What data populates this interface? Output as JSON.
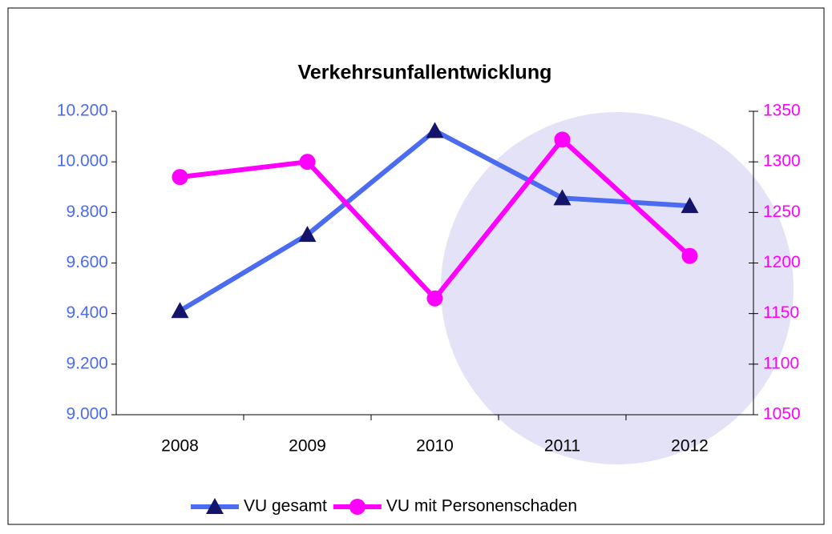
{
  "chart_data": {
    "type": "line",
    "title": "Verkehrsunfallentwicklung",
    "categories": [
      "2008",
      "2009",
      "2010",
      "2011",
      "2012"
    ],
    "series": [
      {
        "name": "VU gesamt",
        "color": "#4b6bf0",
        "marker_color": "#14146a",
        "marker": "triangle",
        "values": [
          9411,
          9712,
          10123,
          9857,
          9826
        ]
      },
      {
        "name": "VU mit Personenschaden",
        "color": "#ff00ff",
        "marker_color": "#ff00ff",
        "marker": "circle",
        "axis": "y2",
        "values": [
          1285,
          1300,
          1165,
          1322,
          1207
        ]
      }
    ],
    "ylim": [
      9000,
      10200
    ],
    "yticks": [
      {
        "value": 9000,
        "label": "9.000"
      },
      {
        "value": 9200,
        "label": "9.200"
      },
      {
        "value": 9400,
        "label": "9.400"
      },
      {
        "value": 9600,
        "label": "9.600"
      },
      {
        "value": 9800,
        "label": "9.800"
      },
      {
        "value": 10000,
        "label": "10.000"
      },
      {
        "value": 10200,
        "label": "10.200"
      }
    ],
    "y2lim": [
      1050,
      1350
    ],
    "y2ticks": [
      1050,
      1100,
      1150,
      1200,
      1250,
      1300,
      1350
    ],
    "ytick_color": "#4b6bf0",
    "y2tick_color": "#ff00ff",
    "grid": false,
    "legend": "bottom"
  }
}
